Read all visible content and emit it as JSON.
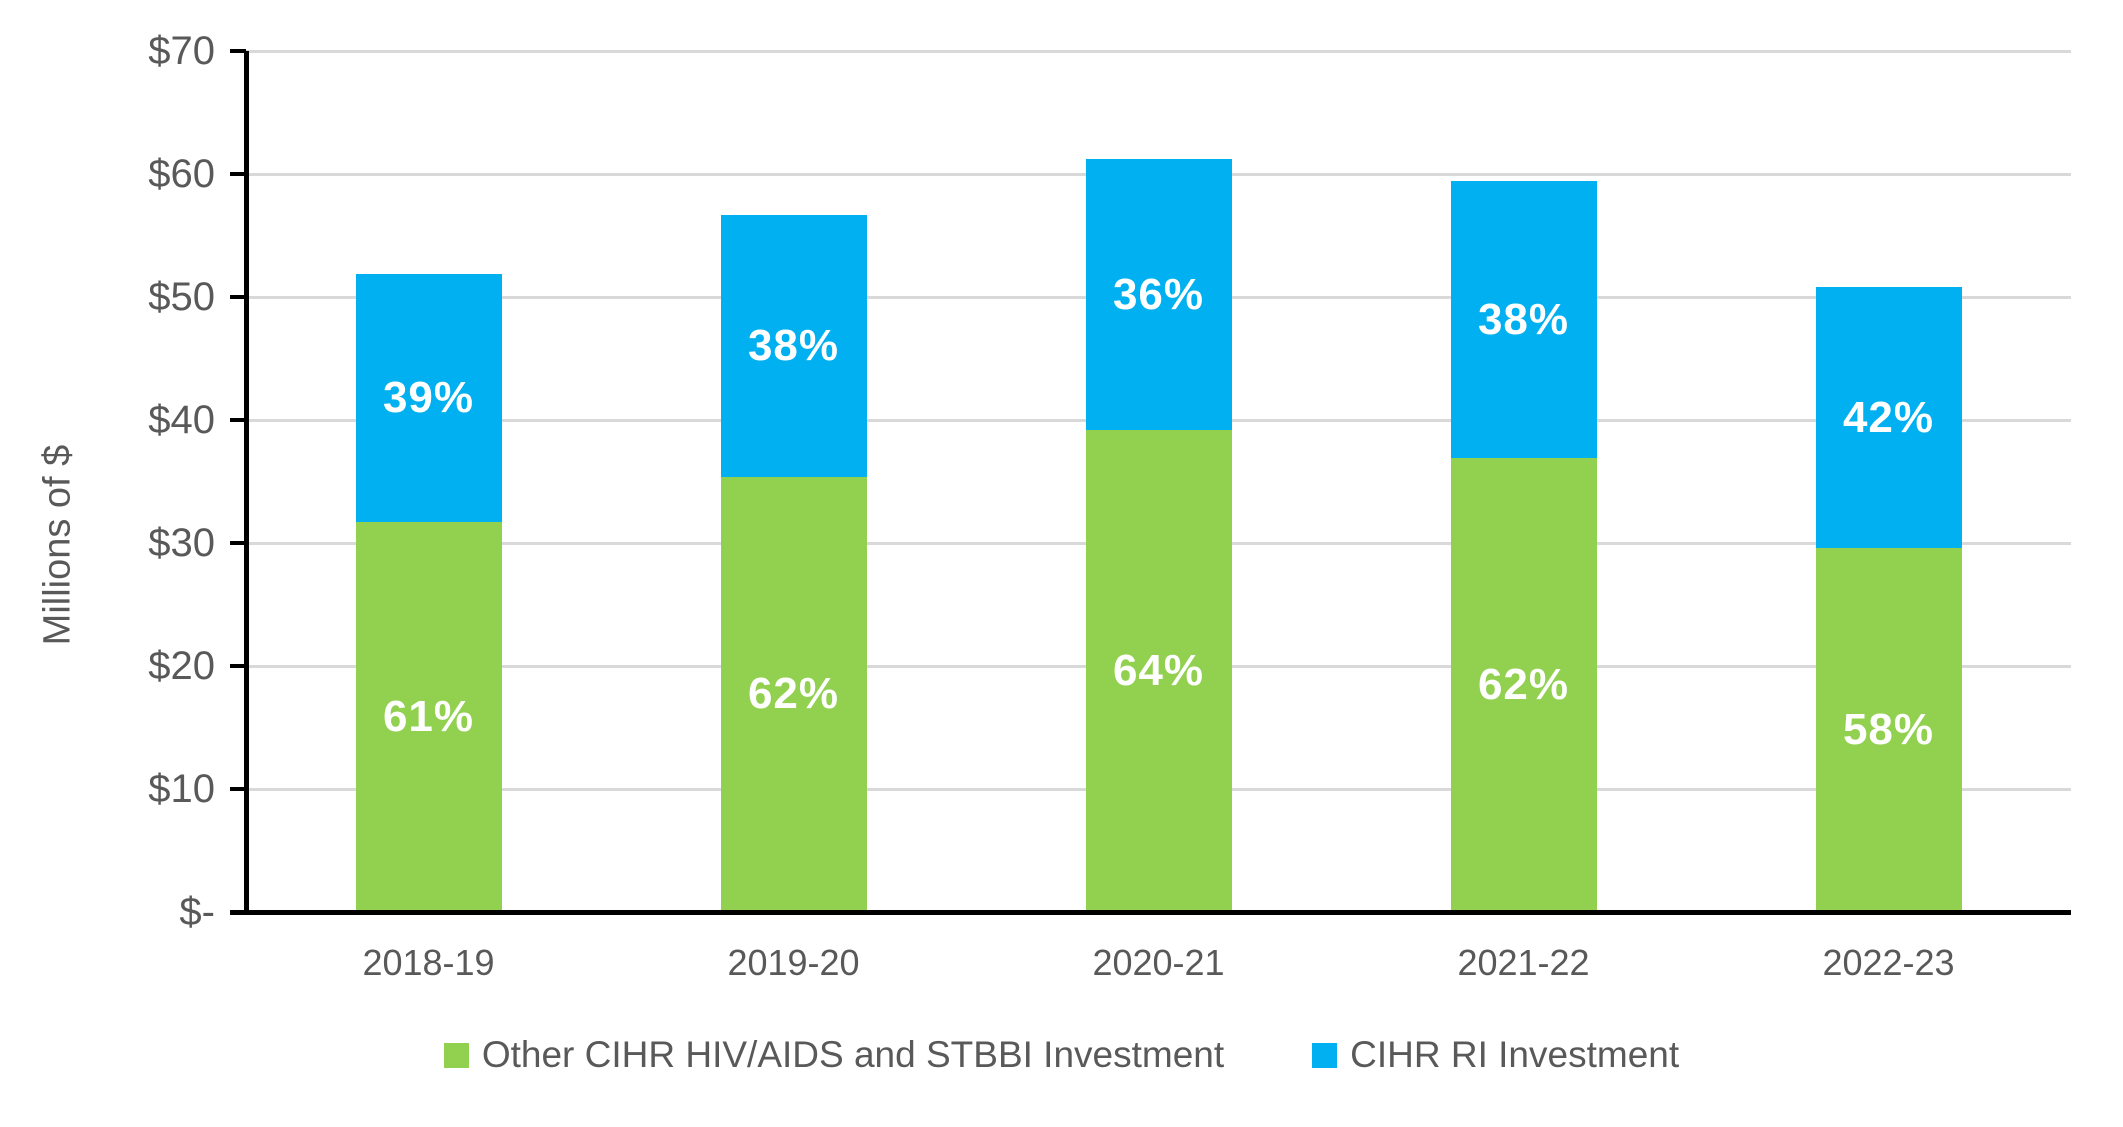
{
  "chart_data": {
    "type": "bar",
    "stacked": true,
    "title": "",
    "ylabel": "Millions of $",
    "xlabel": "",
    "ylim": [
      0,
      70
    ],
    "y_tick_step": 10,
    "grid": true,
    "legend_position": "bottom",
    "categories": [
      "2018-19",
      "2019-20",
      "2020-21",
      "2021-22",
      "2022-23"
    ],
    "y_ticks": [
      {
        "value": 0,
        "label": "$-"
      },
      {
        "value": 10,
        "label": "$10"
      },
      {
        "value": 20,
        "label": "$20"
      },
      {
        "value": 30,
        "label": "$30"
      },
      {
        "value": 40,
        "label": "$40"
      },
      {
        "value": 50,
        "label": "$50"
      },
      {
        "value": 60,
        "label": "$60"
      },
      {
        "value": 70,
        "label": "$70"
      }
    ],
    "series": [
      {
        "name": "Other CIHR HIV/AIDS and STBBI Investment",
        "color": "#92D050",
        "values": [
          31.7,
          35.4,
          39.2,
          36.9,
          29.6
        ],
        "segment_labels": [
          "61%",
          "62%",
          "64%",
          "62%",
          "58%"
        ]
      },
      {
        "name": "CIHR RI Investment",
        "color": "#00B0F0",
        "values": [
          20.2,
          21.3,
          22.0,
          22.5,
          21.2
        ],
        "segment_labels": [
          "39%",
          "38%",
          "36%",
          "38%",
          "42%"
        ]
      }
    ],
    "stack_totals": [
      51.9,
      56.7,
      61.2,
      59.4,
      50.8
    ]
  },
  "colors": {
    "gridline": "#D9D9D9",
    "axis_line": "#000000",
    "axis_text": "#595959",
    "bar_label_text": "#FFFFFF",
    "background": "#FFFFFF"
  }
}
